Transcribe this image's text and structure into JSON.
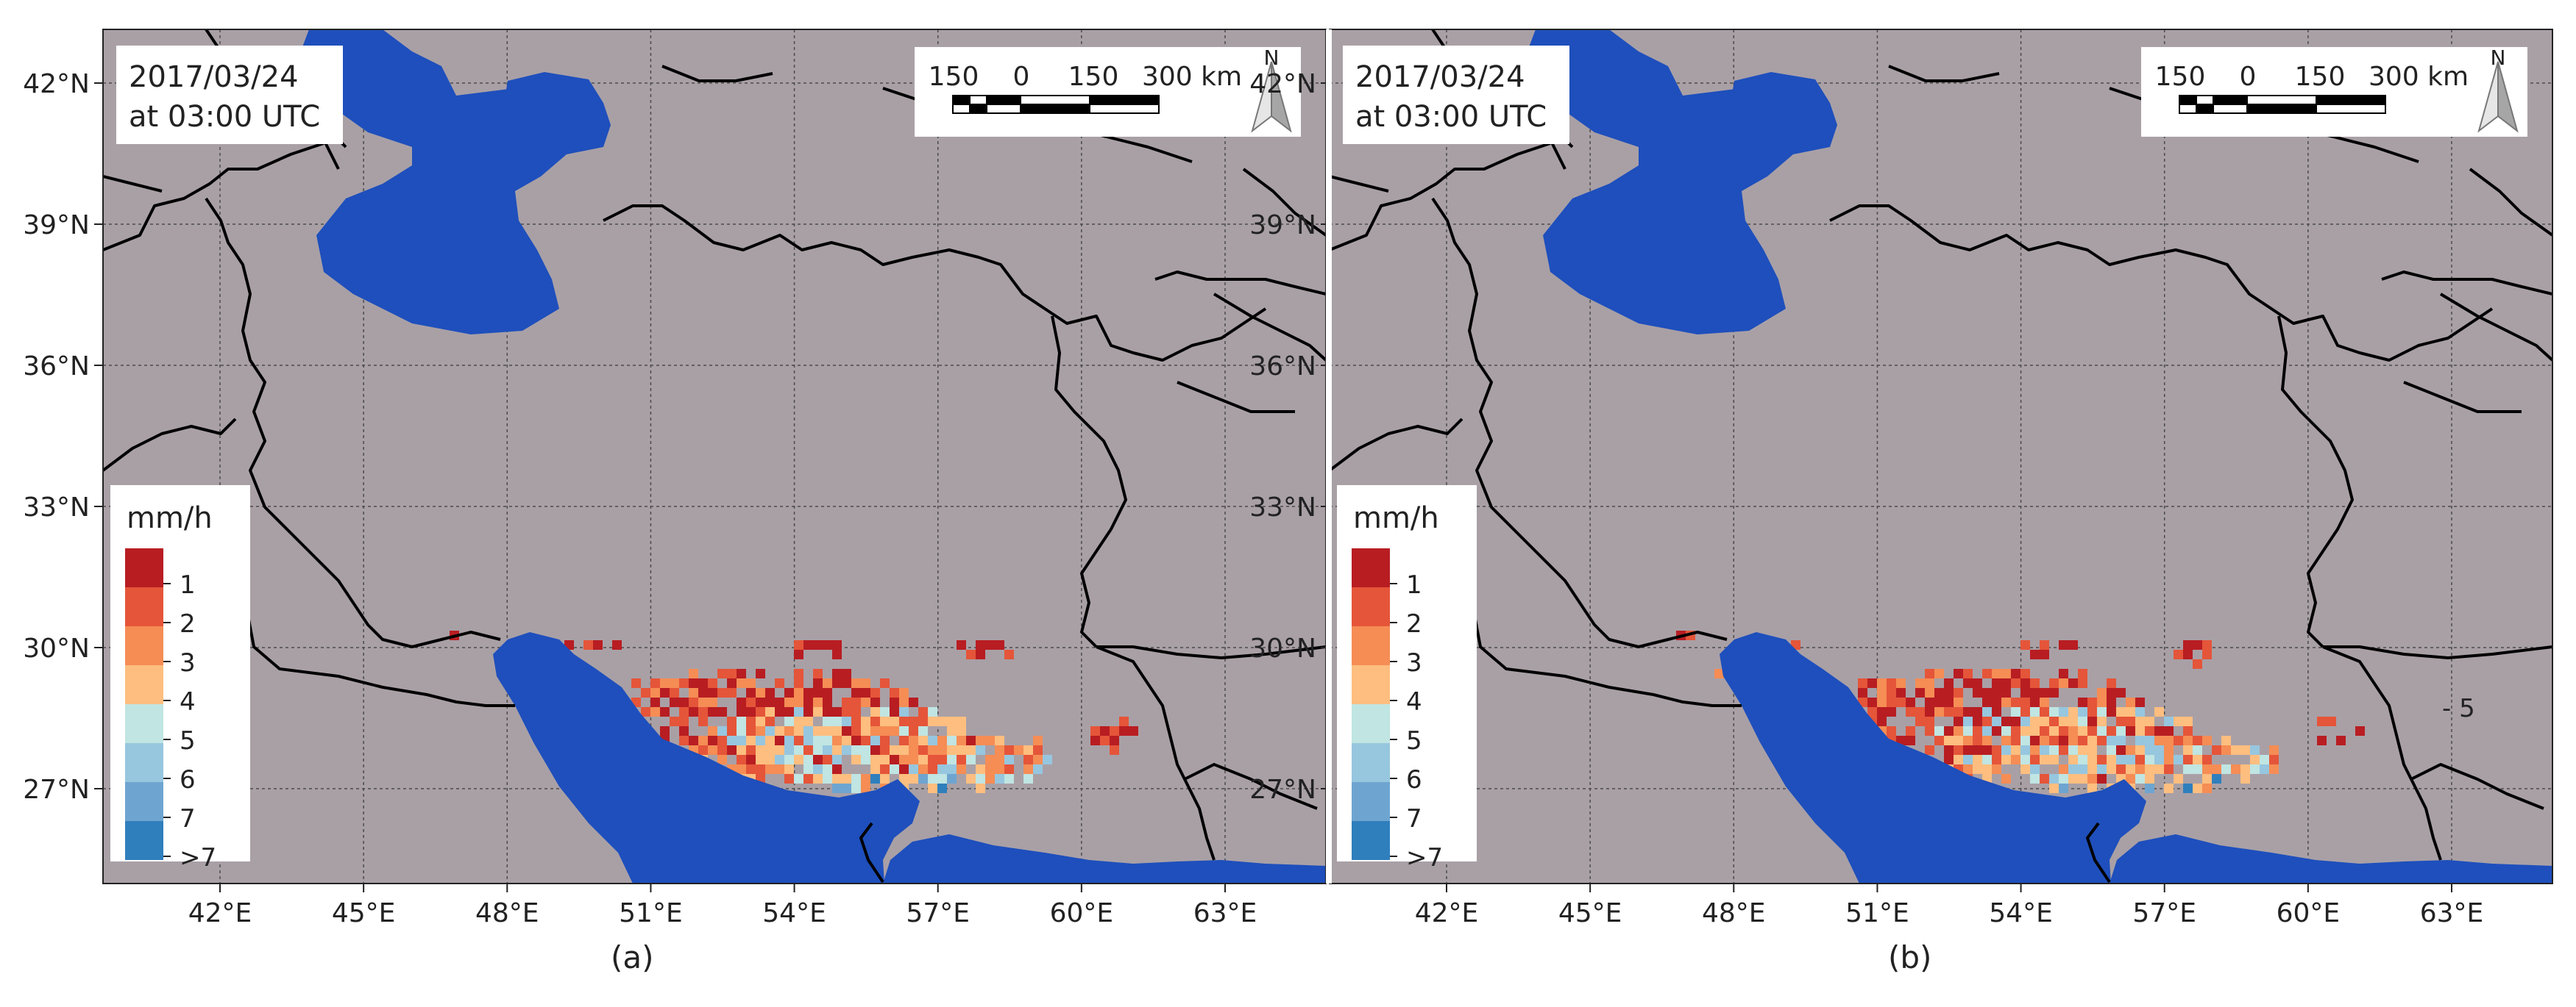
{
  "colors": {
    "land": "#a9a0a6",
    "water": "#1e4fbc",
    "border": "#000000",
    "grid": "#4a4a4a",
    "scale": [
      "#b81d22",
      "#e55539",
      "#f58d55",
      "#fdbe7f",
      "#c0e5e2",
      "#97c6df",
      "#6ea5d0",
      "#2f7fbd"
    ]
  },
  "axes": {
    "lat_labels": [
      "42°N",
      "39°N",
      "36°N",
      "33°N",
      "30°N",
      "27°N"
    ],
    "lon_labels": [
      "42°E",
      "45°E",
      "48°E",
      "51°E",
      "54°E",
      "57°E",
      "60°E",
      "63°E"
    ]
  },
  "legend": {
    "title": "mm/h",
    "labels": [
      "1",
      "2",
      "3",
      "4",
      "5",
      "6",
      "7",
      ">7"
    ]
  },
  "scalebar": {
    "labels": [
      "150",
      "0",
      "150",
      "300 km"
    ],
    "north": "N"
  },
  "panels": [
    {
      "id": "a",
      "date": "2017/03/24",
      "time": "at 03:00 UTC",
      "caption": "(a)",
      "annotation": ""
    },
    {
      "id": "b",
      "date": "2017/03/24",
      "time": "at 03:00 UTC",
      "caption": "(b)",
      "annotation": "- 5"
    }
  ]
}
